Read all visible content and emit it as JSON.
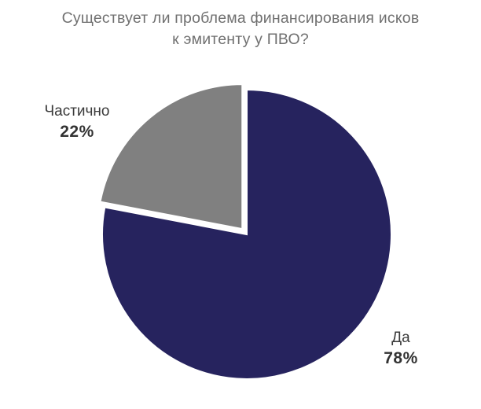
{
  "chart_data": {
    "type": "pie",
    "title_lines": [
      "Существует ли проблема финансирования исков",
      "к эмитенту у ПВО?"
    ],
    "slices": [
      {
        "label": "Да",
        "value": 78,
        "value_label": "78%",
        "color": "#26235e"
      },
      {
        "label": "Частично",
        "value": 22,
        "value_label": "22%",
        "color": "#808080"
      }
    ],
    "start_angle_deg": 0,
    "direction": "clockwise",
    "exploded_slice": "Частично"
  }
}
